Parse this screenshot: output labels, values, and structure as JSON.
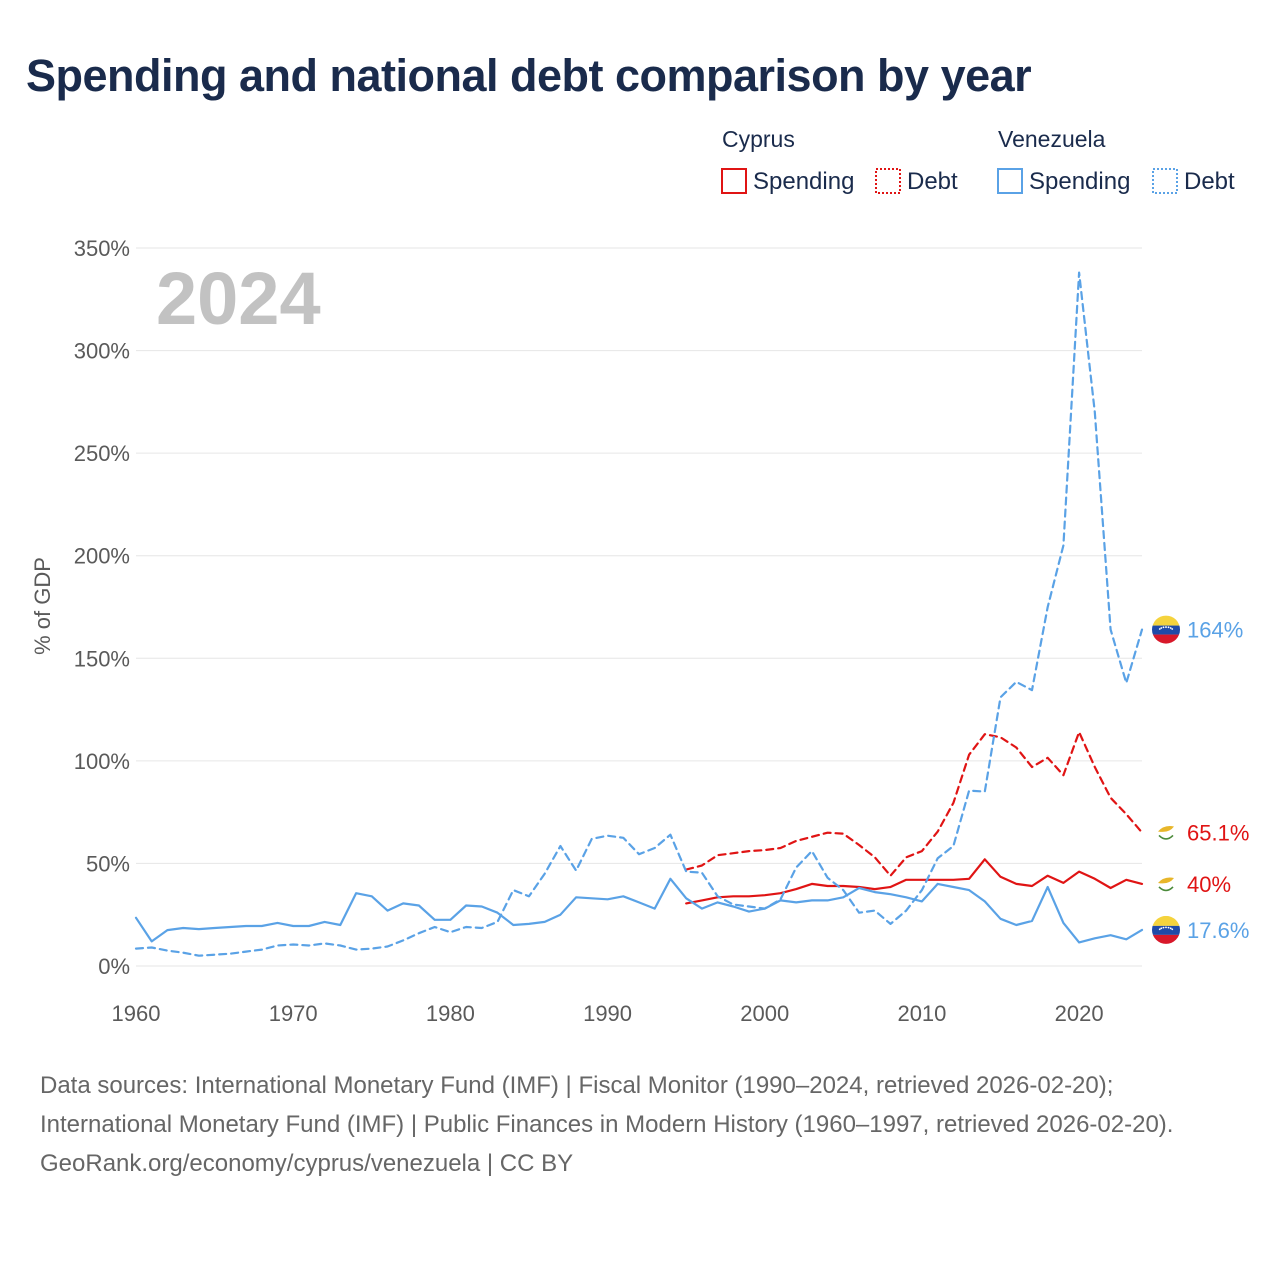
{
  "title": "Spending and national debt comparison by year",
  "colors": {
    "cyprus": "#e01414",
    "venezuela": "#5aa2e6",
    "grid": "#e6e6e6",
    "text": "#1a2b4c"
  },
  "legend": {
    "groups": [
      {
        "country": "Cyprus",
        "color": "#e01414",
        "items": [
          "Spending",
          "Debt"
        ]
      },
      {
        "country": "Venezuela",
        "color": "#5aa2e6",
        "items": [
          "Spending",
          "Debt"
        ]
      }
    ]
  },
  "chart_data": {
    "type": "line",
    "title": "Spending and national debt comparison by year",
    "watermark_year": "2024",
    "ylabel": "% of GDP",
    "xlabel": "",
    "xlim": [
      1960,
      2024
    ],
    "ylim": [
      0,
      350
    ],
    "xticks": [
      1960,
      1970,
      1980,
      1990,
      2000,
      2010,
      2020
    ],
    "yticks": [
      0,
      50,
      100,
      150,
      200,
      250,
      300,
      350
    ],
    "ytick_labels": [
      "0%",
      "50%",
      "100%",
      "150%",
      "200%",
      "250%",
      "300%",
      "350%"
    ],
    "series": [
      {
        "name": "Cyprus Spending",
        "country": "cyprus",
        "style": "solid",
        "color": "#e01414",
        "x": [
          1995,
          1996,
          1997,
          1998,
          1999,
          2000,
          2001,
          2002,
          2003,
          2004,
          2005,
          2006,
          2007,
          2008,
          2009,
          2010,
          2011,
          2012,
          2013,
          2014,
          2015,
          2016,
          2017,
          2018,
          2019,
          2020,
          2021,
          2022,
          2023,
          2024
        ],
        "values": [
          30.5,
          32,
          33.5,
          34,
          34,
          34.5,
          35.5,
          37.5,
          40,
          39,
          39,
          38.5,
          37.5,
          38.5,
          42,
          42,
          42,
          42,
          42.5,
          52,
          43.5,
          40,
          39,
          44,
          40.5,
          46,
          42.5,
          38,
          42,
          40
        ],
        "end_label": "40%"
      },
      {
        "name": "Cyprus Debt",
        "country": "cyprus",
        "style": "dashed",
        "color": "#e01414",
        "x": [
          1995,
          1996,
          1997,
          1998,
          1999,
          2000,
          2001,
          2002,
          2003,
          2004,
          2005,
          2006,
          2007,
          2008,
          2009,
          2010,
          2011,
          2012,
          2013,
          2014,
          2015,
          2016,
          2017,
          2018,
          2019,
          2020,
          2021,
          2022,
          2023,
          2024
        ],
        "values": [
          47,
          49,
          54,
          55,
          56,
          56.5,
          57.5,
          61,
          63,
          65,
          64.5,
          59,
          53,
          44,
          53,
          56,
          65.5,
          79.5,
          103,
          113,
          111.5,
          106.5,
          97,
          101.5,
          93,
          114,
          97,
          82,
          74,
          65.1
        ],
        "end_label": "65.1%"
      },
      {
        "name": "Venezuela Spending",
        "country": "venezuela",
        "style": "solid",
        "color": "#5aa2e6",
        "x": [
          1960,
          1961,
          1962,
          1963,
          1964,
          1965,
          1966,
          1967,
          1968,
          1969,
          1970,
          1971,
          1972,
          1973,
          1974,
          1975,
          1976,
          1977,
          1978,
          1979,
          1980,
          1981,
          1982,
          1983,
          1984,
          1985,
          1986,
          1987,
          1988,
          1989,
          1990,
          1991,
          1992,
          1993,
          1994,
          1995,
          1996,
          1997,
          1998,
          1999,
          2000,
          2001,
          2002,
          2003,
          2004,
          2005,
          2006,
          2007,
          2008,
          2009,
          2010,
          2011,
          2012,
          2013,
          2014,
          2015,
          2016,
          2017,
          2018,
          2019,
          2020,
          2021,
          2022,
          2023,
          2024
        ],
        "values": [
          23.5,
          12,
          17.5,
          18.5,
          18,
          18.5,
          19,
          19.5,
          19.5,
          21,
          19.5,
          19.5,
          21.5,
          20,
          35.5,
          34,
          27,
          30.5,
          29.5,
          22.5,
          22.5,
          29.5,
          29,
          26,
          20,
          20.5,
          21.5,
          25,
          33.5,
          33,
          32.5,
          34,
          31,
          28,
          42.5,
          33,
          28,
          31,
          29,
          26.5,
          28,
          32,
          31,
          32,
          32,
          33.5,
          38,
          36,
          35,
          33.5,
          31.5,
          40,
          38.5,
          37,
          31.5,
          23,
          20,
          22,
          38.5,
          21,
          11.5,
          13.5,
          15,
          13,
          17.6
        ],
        "end_label": "17.6%"
      },
      {
        "name": "Venezuela Debt",
        "country": "venezuela",
        "style": "dashed",
        "color": "#5aa2e6",
        "x": [
          1960,
          1961,
          1962,
          1963,
          1964,
          1965,
          1966,
          1967,
          1968,
          1969,
          1970,
          1971,
          1972,
          1973,
          1974,
          1975,
          1976,
          1977,
          1978,
          1979,
          1980,
          1981,
          1982,
          1983,
          1984,
          1985,
          1986,
          1987,
          1988,
          1989,
          1990,
          1991,
          1992,
          1993,
          1994,
          1995,
          1996,
          1997,
          1998,
          1999,
          2000,
          2001,
          2002,
          2003,
          2004,
          2005,
          2006,
          2007,
          2008,
          2009,
          2010,
          2011,
          2012,
          2013,
          2014,
          2015,
          2016,
          2017,
          2018,
          2019,
          2020,
          2021,
          2022,
          2023,
          2024
        ],
        "values": [
          8.5,
          9,
          7.5,
          6.5,
          5,
          5.5,
          6,
          7,
          8,
          10,
          10.5,
          10,
          11,
          10,
          8,
          8.5,
          9.5,
          12.5,
          16,
          19,
          16.5,
          19,
          18.5,
          21.5,
          37,
          34,
          45,
          58.5,
          46.5,
          62,
          63.5,
          62.5,
          54.5,
          57.5,
          64,
          46,
          45.5,
          34,
          30,
          29,
          28,
          32.5,
          48,
          56,
          43,
          37,
          26,
          27,
          20.5,
          27,
          37,
          52.5,
          58.5,
          85.5,
          85,
          131,
          138.5,
          134.5,
          175,
          205,
          338,
          270,
          164,
          138,
          164
        ],
        "end_label": "164%"
      }
    ]
  },
  "footer": {
    "sources": "Data sources: International Monetary Fund (IMF) | Fiscal Monitor (1990–2024, retrieved 2026-02-20); International Monetary Fund (IMF) | Public Finances in Modern History (1960–1997, retrieved 2026-02-20).",
    "credit": "GeoRank.org/economy/cyprus/venezuela | CC BY"
  }
}
